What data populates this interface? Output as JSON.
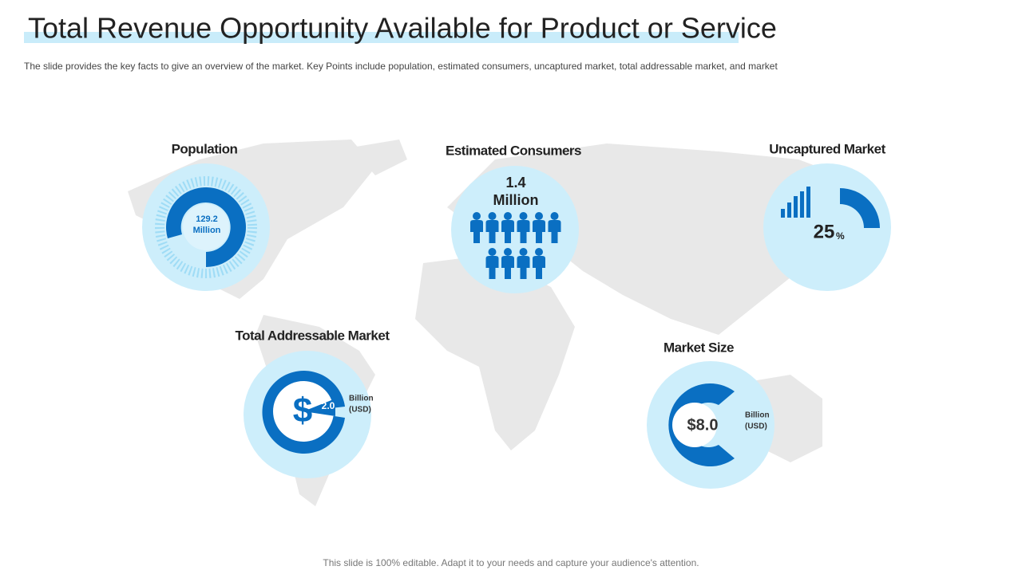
{
  "header": {
    "title": "Total Revenue Opportunity Available for Product or Service",
    "subtitle": "The slide provides  the key facts to give  an overview  of the market. Key Points include population, estimated consumers, uncaptured market, total addressable market, and market"
  },
  "panels": {
    "population": {
      "label": "Population",
      "value": "129.2",
      "unit": "Million"
    },
    "consumers": {
      "label": "Estimated Consumers",
      "value": "1.4",
      "unit": "Million"
    },
    "uncaptured": {
      "label": "Uncaptured Market",
      "value": 25,
      "unit": "%"
    },
    "addressable": {
      "label": "Total Addressable Market",
      "symbol": "$",
      "value": "2.0",
      "unit_line1": "Billion",
      "unit_line2": "(USD)"
    },
    "market_size": {
      "label": "Market Size",
      "value": "$8.0",
      "unit_line1": "Billion",
      "unit_line2": "(USD)"
    }
  },
  "footer": "This slide is 100% editable. Adapt it to your needs and capture your audience's attention."
}
